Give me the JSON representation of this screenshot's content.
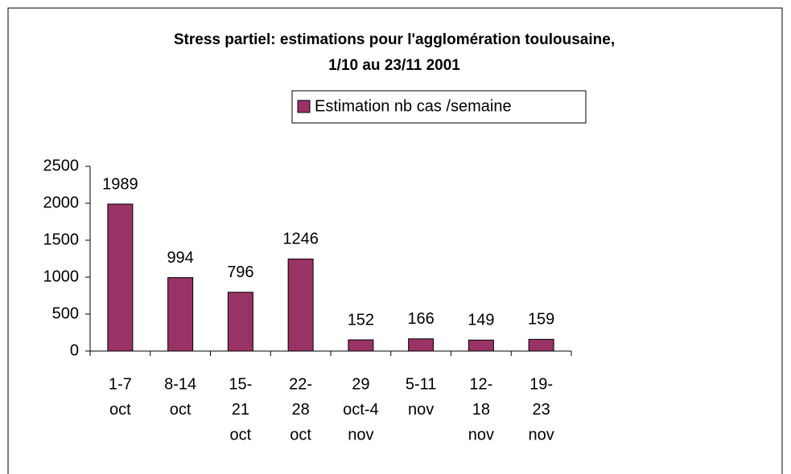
{
  "chart_data": {
    "type": "bar",
    "title": [
      "Stress  partiel: estimations pour l'agglomération toulousaine,",
      "1/10 au 23/11 2001"
    ],
    "categories": [
      [
        "1-7",
        "oct"
      ],
      [
        "8-14",
        "oct"
      ],
      [
        "15-",
        "21",
        "oct"
      ],
      [
        "22-",
        "28",
        "oct"
      ],
      [
        "29",
        "oct-4",
        "nov"
      ],
      [
        "5-11",
        "nov"
      ],
      [
        "12-",
        "18",
        "nov"
      ],
      [
        "19-",
        "23",
        "nov"
      ]
    ],
    "series": [
      {
        "name": "Estimation nb cas /semaine",
        "color": "#993366",
        "values": [
          1989,
          994,
          796,
          1246,
          152,
          166,
          149,
          159
        ]
      }
    ],
    "ylim": [
      0,
      2500
    ],
    "yticks": [
      0,
      500,
      1000,
      1500,
      2000,
      2500
    ],
    "legend": "top"
  }
}
